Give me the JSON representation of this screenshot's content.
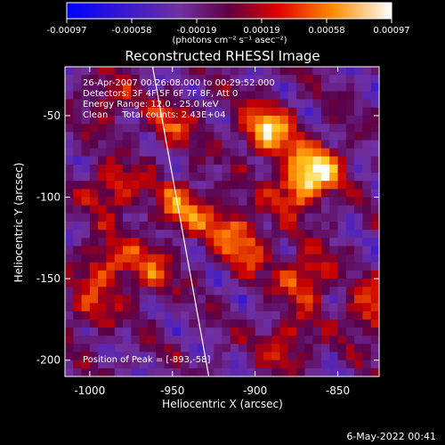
{
  "chart_data": {
    "type": "heatmap",
    "title": "Reconstructed RHESSI Image",
    "xlabel": "Heliocentric X (arcsec)",
    "ylabel": "Heliocentric Y (arcsec)",
    "xlim": [
      -1015,
      -825
    ],
    "ylim": [
      -210,
      -20
    ],
    "xticks": [
      -1000,
      -950,
      -900,
      -850
    ],
    "yticks": [
      -50,
      -100,
      -150,
      -200
    ],
    "colorbar": {
      "label": "(photons cm⁻² s⁻¹ asec⁻²)",
      "ticks": [
        "-0.00097",
        "-0.00058",
        "-0.00019",
        "0.00019",
        "0.00058",
        "0.00097"
      ],
      "min": -0.00097,
      "max": 0.00097
    },
    "annotations": {
      "time_range": "26-Apr-2007 00:26:08.000 to 00:29:52.000",
      "detectors": "Detectors: 3F 4F 5F 6F 7F 8F, Att 0",
      "energy_range": "Energy Range: 12.0 - 25.0 keV",
      "method_counts": "Clean     Total counts: 2.43E+04",
      "peak_position": "Position of Peak = [-893,-58]"
    },
    "limb_line": {
      "x_start": -962,
      "y_start": -20,
      "x_end": -928,
      "y_end": -210
    },
    "peak": {
      "x": -893,
      "y": -58
    },
    "hot_spots": [
      {
        "x": -893,
        "y": -58,
        "value": 0.00097
      },
      {
        "x": -862,
        "y": -82,
        "value": 0.0009
      },
      {
        "x": -875,
        "y": -95,
        "value": 0.0007
      },
      {
        "x": -945,
        "y": -105,
        "value": 0.0006
      },
      {
        "x": -985,
        "y": -95,
        "value": 0.0006
      },
      {
        "x": -990,
        "y": -140,
        "value": 0.0006
      },
      {
        "x": -965,
        "y": -145,
        "value": 0.0005
      },
      {
        "x": -905,
        "y": -130,
        "value": 0.0006
      },
      {
        "x": -920,
        "y": -115,
        "value": 0.0005
      },
      {
        "x": -870,
        "y": -150,
        "value": 0.0007
      },
      {
        "x": -830,
        "y": -170,
        "value": 0.0006
      },
      {
        "x": -990,
        "y": -40,
        "value": 0.0004
      },
      {
        "x": -950,
        "y": -55,
        "value": 0.0005
      },
      {
        "x": -1000,
        "y": -170,
        "value": 0.0004
      },
      {
        "x": -880,
        "y": -190,
        "value": 0.0005
      }
    ]
  },
  "footer": {
    "timestamp": "6-May-2022 00:41"
  }
}
